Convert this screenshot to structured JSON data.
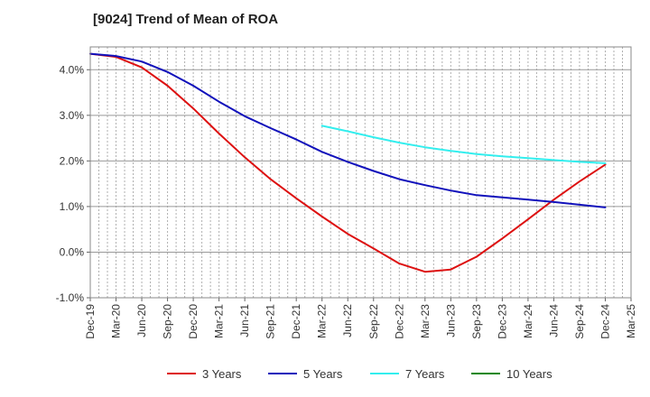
{
  "chart_data": {
    "type": "line",
    "title": "[9024]  Trend of Mean of ROA",
    "xlabel": "",
    "ylabel": "",
    "x_ticks": [
      "Dec-19",
      "Mar-20",
      "Jun-20",
      "Sep-20",
      "Dec-20",
      "Mar-21",
      "Jun-21",
      "Sep-21",
      "Dec-21",
      "Mar-22",
      "Jun-22",
      "Sep-22",
      "Dec-22",
      "Mar-23",
      "Jun-23",
      "Sep-23",
      "Dec-23",
      "Mar-24",
      "Jun-24",
      "Sep-24",
      "Dec-24",
      "Mar-25"
    ],
    "y_ticks": [
      -1.0,
      0.0,
      1.0,
      2.0,
      3.0,
      4.0
    ],
    "y_tick_labels": [
      "-1.0%",
      "0.0%",
      "1.0%",
      "2.0%",
      "3.0%",
      "4.0%"
    ],
    "ylim": [
      -1.0,
      4.5
    ],
    "grid": true,
    "legend_position": "bottom",
    "series": [
      {
        "name": "3 Years",
        "color": "#dd1111",
        "x_index": [
          0,
          1,
          2,
          3,
          4,
          5,
          6,
          7,
          8,
          9,
          10,
          11,
          12,
          13,
          14,
          15,
          16,
          17,
          18,
          19,
          20
        ],
        "values": [
          4.35,
          4.28,
          4.05,
          3.65,
          3.15,
          2.6,
          2.08,
          1.6,
          1.18,
          0.78,
          0.4,
          0.08,
          -0.25,
          -0.43,
          -0.38,
          -0.1,
          0.3,
          0.72,
          1.15,
          1.55,
          1.92
        ]
      },
      {
        "name": "5 Years",
        "color": "#1111bb",
        "x_index": [
          0,
          1,
          2,
          3,
          4,
          5,
          6,
          7,
          8,
          9,
          10,
          11,
          12,
          13,
          14,
          15,
          16,
          17,
          18,
          19,
          20
        ],
        "values": [
          4.35,
          4.3,
          4.18,
          3.95,
          3.65,
          3.3,
          2.98,
          2.72,
          2.47,
          2.2,
          1.98,
          1.78,
          1.6,
          1.47,
          1.35,
          1.25,
          1.2,
          1.15,
          1.1,
          1.04,
          0.98
        ]
      },
      {
        "name": "7 Years",
        "color": "#33eeee",
        "x_index": [
          9,
          10,
          11,
          12,
          13,
          14,
          15,
          16,
          17,
          18,
          19,
          20
        ],
        "values": [
          2.77,
          2.65,
          2.52,
          2.4,
          2.3,
          2.22,
          2.15,
          2.1,
          2.06,
          2.02,
          1.98,
          1.95
        ]
      },
      {
        "name": "10 Years",
        "color": "#118811",
        "x_index": [],
        "values": []
      }
    ]
  }
}
